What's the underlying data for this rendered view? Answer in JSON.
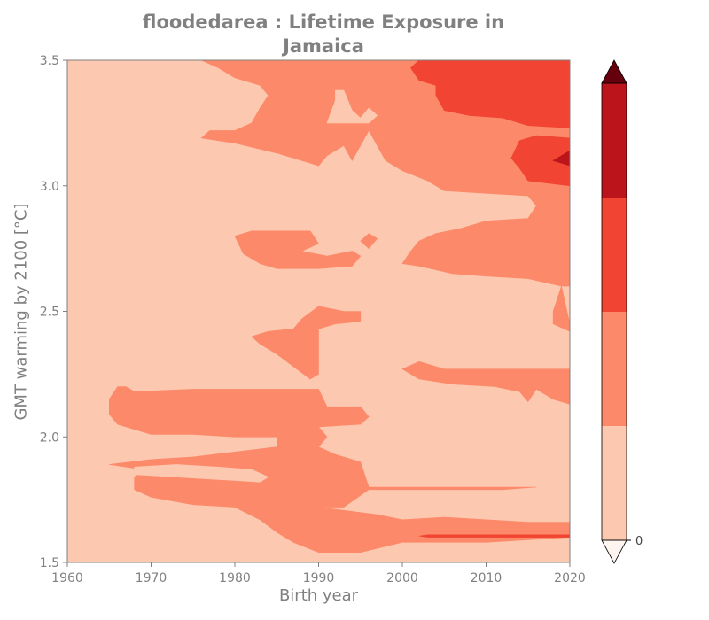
{
  "chart_data": {
    "type": "contourf",
    "title": "floodedarea : Lifetime Exposure in Jamaica",
    "title_lines": [
      "floodedarea : Lifetime Exposure in",
      "Jamaica"
    ],
    "xlabel": "Birth year",
    "ylabel": "GMT warming by 2100 [°C]",
    "xlim": [
      1960,
      2020
    ],
    "ylim": [
      1.5,
      3.5
    ],
    "x_ticks": [
      1960,
      1970,
      1980,
      1990,
      2000,
      2010,
      2020
    ],
    "y_ticks": [
      1.5,
      2.0,
      2.5,
      3.0,
      3.5
    ],
    "y_tick_labels": [
      "1.5",
      "2.0",
      "2.5",
      "3.0",
      "3.5"
    ],
    "colorbar": {
      "tick_label": "0",
      "levels": [
        {
          "level": 0,
          "color": "#fcc8b0"
        },
        {
          "level": 1,
          "color": "#fc8a6a"
        },
        {
          "level": 2,
          "color": "#f24432"
        },
        {
          "level": 3,
          "color": "#bb141a"
        }
      ],
      "extend_max_color": "#67000d",
      "extend_min_color": "#fff5f0"
    },
    "regions": [
      {
        "level": 0,
        "points": [
          [
            1960,
            1.5
          ],
          [
            2020,
            1.5
          ],
          [
            2020,
            3.5
          ],
          [
            1960,
            3.5
          ]
        ]
      },
      {
        "level": 1,
        "points": [
          [
            1976,
            3.5
          ],
          [
            2020,
            3.5
          ],
          [
            2020,
            2.6
          ],
          [
            2019,
            2.6
          ],
          [
            2018,
            2.5
          ],
          [
            2018,
            2.45
          ],
          [
            2020,
            2.42
          ],
          [
            2020,
            2.27
          ],
          [
            2015,
            2.27
          ],
          [
            2010,
            2.27
          ],
          [
            2005,
            2.27
          ],
          [
            2002,
            2.3
          ],
          [
            2000,
            2.27
          ],
          [
            2002,
            2.23
          ],
          [
            2006,
            2.21
          ],
          [
            2011,
            2.2
          ],
          [
            2014,
            2.18
          ],
          [
            2015,
            2.14
          ],
          [
            2016,
            2.19
          ],
          [
            2018,
            2.15
          ],
          [
            2020,
            2.13
          ],
          [
            2020,
            2.4
          ],
          [
            2020,
            2.45
          ],
          [
            2019,
            2.6
          ],
          [
            2015,
            2.63
          ],
          [
            2010,
            2.64
          ],
          [
            2006,
            2.65
          ],
          [
            2002,
            2.68
          ],
          [
            2000,
            2.69
          ],
          [
            2001,
            2.74
          ],
          [
            2002,
            2.78
          ],
          [
            2004,
            2.81
          ],
          [
            2007,
            2.83
          ],
          [
            2010,
            2.86
          ],
          [
            2015,
            2.87
          ],
          [
            2016,
            2.92
          ],
          [
            2015,
            2.96
          ],
          [
            2010,
            2.97
          ],
          [
            2005,
            2.98
          ],
          [
            2003,
            3.02
          ],
          [
            2000,
            3.06
          ],
          [
            1998,
            3.1
          ],
          [
            1996,
            3.22
          ],
          [
            1994,
            3.1
          ],
          [
            1993,
            3.16
          ],
          [
            1991,
            3.12
          ],
          [
            1990,
            3.08
          ],
          [
            1988,
            3.1
          ],
          [
            1985,
            3.13
          ],
          [
            1980,
            3.17
          ],
          [
            1976,
            3.19
          ],
          [
            1977,
            3.22
          ],
          [
            1980,
            3.22
          ],
          [
            1982,
            3.25
          ],
          [
            1983,
            3.31
          ],
          [
            1984,
            3.36
          ],
          [
            1983,
            3.4
          ],
          [
            1980,
            3.43
          ],
          [
            1978,
            3.47
          ]
        ]
      },
      {
        "level": 2,
        "points": [
          [
            2002,
            3.5
          ],
          [
            2020,
            3.5
          ],
          [
            2020,
            3.23
          ],
          [
            2015,
            3.24
          ],
          [
            2012,
            3.27
          ],
          [
            2008,
            3.28
          ],
          [
            2005,
            3.3
          ],
          [
            2004,
            3.36
          ],
          [
            2004,
            3.4
          ],
          [
            2002,
            3.42
          ],
          [
            2001,
            3.47
          ]
        ]
      },
      {
        "level": 2,
        "points": [
          [
            2015,
            3.02
          ],
          [
            2020,
            3.0
          ],
          [
            2020,
            3.19
          ],
          [
            2016,
            3.2
          ],
          [
            2014,
            3.18
          ],
          [
            2013,
            3.11
          ],
          [
            2014,
            3.07
          ]
        ]
      },
      {
        "level": 3,
        "points": [
          [
            2018,
            3.1
          ],
          [
            2020,
            3.14
          ],
          [
            2020,
            3.08
          ]
        ]
      },
      {
        "level": 0,
        "points": [
          [
            1991,
            3.25
          ],
          [
            1992,
            3.34
          ],
          [
            1992,
            3.38
          ],
          [
            1993,
            3.38
          ],
          [
            1994,
            3.3
          ],
          [
            1995,
            3.27
          ],
          [
            1996,
            3.31
          ],
          [
            1997,
            3.28
          ],
          [
            1996,
            3.25
          ]
        ]
      },
      {
        "level": 1,
        "points": [
          [
            1982,
            2.82
          ],
          [
            1989,
            2.82
          ],
          [
            1990,
            2.77
          ],
          [
            1988,
            2.74
          ],
          [
            1991,
            2.72
          ],
          [
            1994,
            2.74
          ],
          [
            1995,
            2.72
          ],
          [
            1994,
            2.68
          ],
          [
            1990,
            2.67
          ],
          [
            1985,
            2.67
          ],
          [
            1983,
            2.69
          ],
          [
            1981,
            2.73
          ],
          [
            1980,
            2.8
          ]
        ]
      },
      {
        "level": 1,
        "points": [
          [
            1996,
            2.81
          ],
          [
            1997,
            2.79
          ],
          [
            1996,
            2.75
          ],
          [
            1995,
            2.78
          ]
        ]
      },
      {
        "level": 1,
        "points": [
          [
            1990,
            2.52
          ],
          [
            1993,
            2.5
          ],
          [
            1995,
            2.5
          ],
          [
            1995,
            2.46
          ],
          [
            1992,
            2.45
          ],
          [
            1990,
            2.43
          ],
          [
            1990,
            2.35
          ],
          [
            1990,
            2.25
          ],
          [
            1989,
            2.23
          ],
          [
            1987,
            2.28
          ],
          [
            1985,
            2.33
          ],
          [
            1983,
            2.37
          ],
          [
            1982,
            2.4
          ],
          [
            1984,
            2.42
          ],
          [
            1987,
            2.43
          ],
          [
            1988,
            2.47
          ]
        ]
      },
      {
        "level": 1,
        "points": [
          [
            1966,
            2.2
          ],
          [
            1967,
            2.2
          ],
          [
            1968,
            2.18
          ],
          [
            1975,
            2.19
          ],
          [
            1980,
            2.19
          ],
          [
            1985,
            2.19
          ],
          [
            1990,
            2.19
          ],
          [
            1991,
            2.12
          ],
          [
            1995,
            2.12
          ],
          [
            1996,
            2.08
          ],
          [
            1995,
            2.05
          ],
          [
            1990,
            2.04
          ],
          [
            1991,
            2.0
          ],
          [
            1990,
            1.96
          ],
          [
            1992,
            1.93
          ],
          [
            1995,
            1.9
          ],
          [
            1996,
            1.8
          ],
          [
            2004,
            1.8
          ],
          [
            2012,
            1.8
          ],
          [
            2016,
            1.8
          ],
          [
            2012,
            1.79
          ],
          [
            2004,
            1.79
          ],
          [
            1996,
            1.79
          ],
          [
            1993,
            1.72
          ],
          [
            1990,
            1.72
          ],
          [
            1997,
            1.69
          ],
          [
            2000,
            1.67
          ],
          [
            2005,
            1.68
          ],
          [
            2010,
            1.67
          ],
          [
            2015,
            1.66
          ],
          [
            2020,
            1.66
          ],
          [
            2020,
            1.6
          ],
          [
            2010,
            1.58
          ],
          [
            2000,
            1.58
          ],
          [
            1995,
            1.54
          ],
          [
            1990,
            1.54
          ],
          [
            1987,
            1.58
          ],
          [
            1985,
            1.62
          ],
          [
            1983,
            1.67
          ],
          [
            1980,
            1.72
          ],
          [
            1975,
            1.73
          ],
          [
            1970,
            1.76
          ],
          [
            1968,
            1.79
          ],
          [
            1968,
            1.84
          ],
          [
            1969,
            1.87
          ],
          [
            1965,
            1.89
          ],
          [
            1970,
            1.91
          ],
          [
            1975,
            1.92
          ],
          [
            1980,
            1.94
          ],
          [
            1985,
            1.96
          ],
          [
            1985,
            2.0
          ],
          [
            1980,
            2.0
          ],
          [
            1975,
            2.01
          ],
          [
            1970,
            2.01
          ],
          [
            1966,
            2.05
          ],
          [
            1965,
            2.09
          ],
          [
            1965,
            2.15
          ]
        ]
      },
      {
        "level": 0,
        "points": [
          [
            1968,
            1.85
          ],
          [
            1973,
            1.84
          ],
          [
            1978,
            1.83
          ],
          [
            1983,
            1.82
          ],
          [
            1984,
            1.84
          ],
          [
            1982,
            1.87
          ],
          [
            1978,
            1.88
          ],
          [
            1973,
            1.89
          ],
          [
            1968,
            1.88
          ]
        ]
      },
      {
        "level": 2,
        "points": [
          [
            2003,
            1.61
          ],
          [
            2010,
            1.61
          ],
          [
            2015,
            1.61
          ],
          [
            2020,
            1.61
          ],
          [
            2020,
            1.6
          ],
          [
            2015,
            1.6
          ],
          [
            2010,
            1.6
          ],
          [
            2003,
            1.6
          ],
          [
            2002,
            1.605
          ]
        ]
      }
    ]
  }
}
